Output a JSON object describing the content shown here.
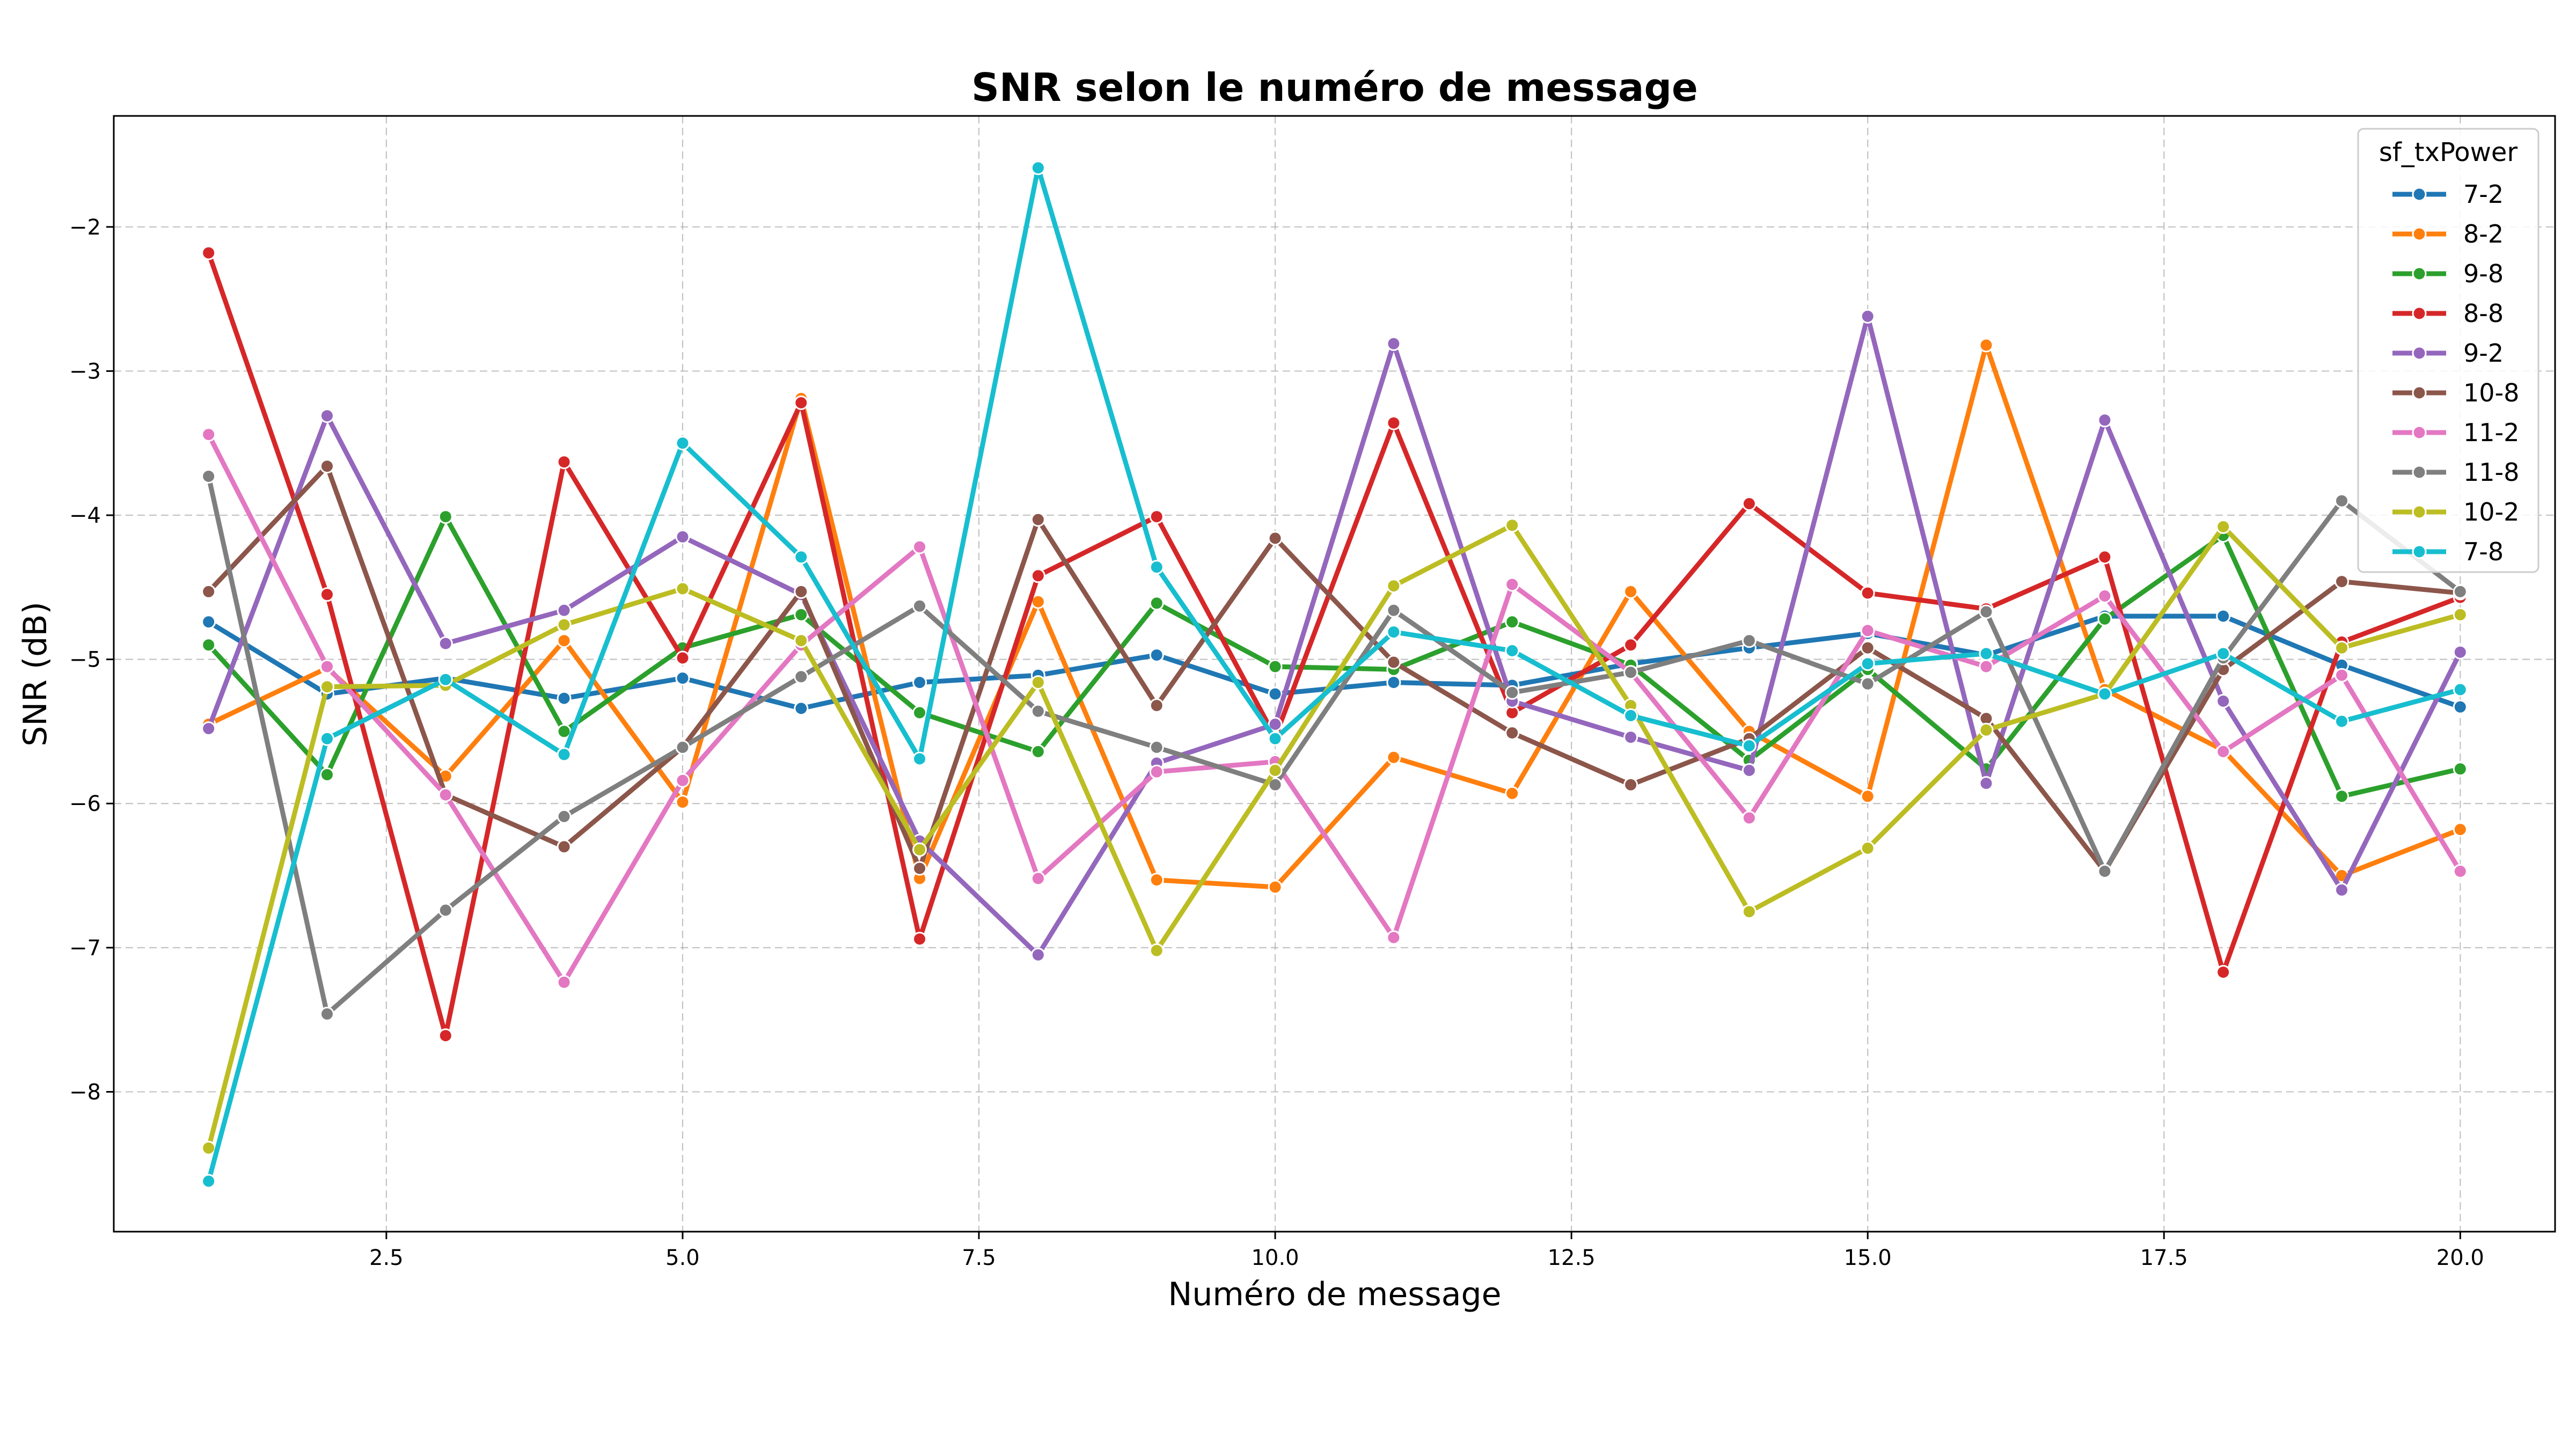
{
  "chart_data": {
    "type": "line",
    "title": "SNR selon le numéro de message",
    "xlabel": "Numéro de message",
    "ylabel": "SNR (dB)",
    "xlim": [
      0.2,
      20.8
    ],
    "ylim": [
      -8.97,
      -1.23
    ],
    "x_ticks": [
      2.5,
      5.0,
      7.5,
      10.0,
      12.5,
      15.0,
      17.5,
      20.0
    ],
    "x_tick_labels": [
      "2.5",
      "5.0",
      "7.5",
      "10.0",
      "12.5",
      "15.0",
      "17.5",
      "20.0"
    ],
    "y_ticks": [
      -2,
      -3,
      -4,
      -5,
      -6,
      -7,
      -8
    ],
    "y_tick_labels": [
      "−2",
      "−3",
      "−4",
      "−5",
      "−6",
      "−7",
      "−8"
    ],
    "grid": true,
    "legend_title": "sf_txPower",
    "legend_position": "top-right",
    "x": [
      1,
      2,
      3,
      4,
      5,
      6,
      7,
      8,
      9,
      10,
      11,
      12,
      13,
      14,
      15,
      16,
      17,
      18,
      19,
      20
    ],
    "series": [
      {
        "name": "7-2",
        "color": "#1f77b4",
        "values": [
          -4.74,
          -5.24,
          -5.13,
          -5.27,
          -5.13,
          -5.34,
          -5.16,
          -5.11,
          -4.97,
          -5.24,
          -5.16,
          -5.18,
          -5.03,
          -4.92,
          -4.82,
          -4.97,
          -4.7,
          -4.7,
          -5.04,
          -5.33
        ]
      },
      {
        "name": "8-2",
        "color": "#ff7f0e",
        "values": [
          -5.45,
          -5.06,
          -5.81,
          -4.87,
          -5.99,
          -3.19,
          -6.52,
          -4.6,
          -6.53,
          -6.58,
          -5.68,
          -5.93,
          -4.53,
          -5.5,
          -5.95,
          -2.82,
          -5.21,
          -5.63,
          -6.5,
          -6.18
        ]
      },
      {
        "name": "9-8",
        "color": "#2ca02c",
        "values": [
          -4.9,
          -5.8,
          -4.01,
          -5.5,
          -4.92,
          -4.69,
          -5.37,
          -5.64,
          -4.61,
          -5.05,
          -5.07,
          -4.74,
          -5.04,
          -5.7,
          -5.07,
          -5.76,
          -4.72,
          -4.14,
          -5.95,
          -5.76
        ]
      },
      {
        "name": "8-8",
        "color": "#d62728",
        "values": [
          -2.18,
          -4.55,
          -7.61,
          -3.63,
          -4.99,
          -3.22,
          -6.94,
          -4.42,
          -4.01,
          -5.54,
          -3.36,
          -5.37,
          -4.9,
          -3.92,
          -4.54,
          -4.65,
          -4.29,
          -7.17,
          -4.88,
          -4.57
        ]
      },
      {
        "name": "9-2",
        "color": "#9467bd",
        "values": [
          -5.48,
          -3.31,
          -4.89,
          -4.66,
          -4.15,
          -4.55,
          -6.26,
          -7.05,
          -5.72,
          -5.45,
          -2.81,
          -5.29,
          -5.54,
          -5.77,
          -2.62,
          -5.86,
          -3.34,
          -5.29,
          -6.6,
          -4.95
        ]
      },
      {
        "name": "10-8",
        "color": "#8c564b",
        "values": [
          -4.53,
          -3.66,
          -5.94,
          -6.3,
          -5.61,
          -4.53,
          -6.45,
          -4.03,
          -5.32,
          -4.16,
          -5.02,
          -5.51,
          -5.87,
          -5.55,
          -4.92,
          -5.41,
          -6.47,
          -5.07,
          -4.46,
          -4.54
        ]
      },
      {
        "name": "11-2",
        "color": "#e377c2",
        "values": [
          -3.44,
          -5.05,
          -5.94,
          -7.24,
          -5.84,
          -4.9,
          -4.22,
          -6.52,
          -5.78,
          -5.71,
          -6.93,
          -4.48,
          -5.09,
          -6.1,
          -4.8,
          -5.05,
          -4.56,
          -5.64,
          -5.11,
          -6.47
        ]
      },
      {
        "name": "11-8",
        "color": "#7f7f7f",
        "values": [
          -3.73,
          -7.46,
          -6.74,
          -6.09,
          -5.61,
          -5.12,
          -4.63,
          -5.36,
          -5.61,
          -5.87,
          -4.66,
          -5.23,
          -5.09,
          -4.87,
          -5.17,
          -4.67,
          -6.47,
          -4.99,
          -3.9,
          -4.53
        ]
      },
      {
        "name": "10-2",
        "color": "#bcbd22",
        "values": [
          -8.39,
          -5.19,
          -5.18,
          -4.76,
          -4.51,
          -4.87,
          -6.32,
          -5.16,
          -7.02,
          -5.77,
          -4.49,
          -4.07,
          -5.32,
          -6.75,
          -6.31,
          -5.49,
          -5.24,
          -4.08,
          -4.92,
          -4.69
        ]
      },
      {
        "name": "7-8",
        "color": "#17becf",
        "values": [
          -8.62,
          -5.55,
          -5.14,
          -5.66,
          -3.5,
          -4.29,
          -5.69,
          -1.59,
          -4.36,
          -5.55,
          -4.81,
          -4.94,
          -5.39,
          -5.6,
          -5.03,
          -4.96,
          -5.24,
          -4.96,
          -5.43,
          -5.21
        ]
      }
    ]
  }
}
